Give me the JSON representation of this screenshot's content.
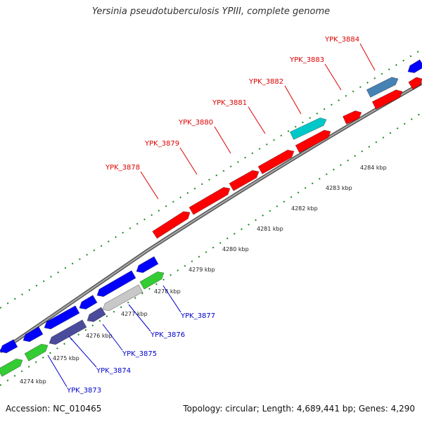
{
  "title": "Yersinia pseudotuberculosis YPIII, complete genome",
  "footer": {
    "accession": "Accession: NC_010465",
    "summary": "Topology: circular; Length: 4,689,441 bp; Genes: 4,290"
  },
  "colors": {
    "reverse_strand_gene": "#ff0000",
    "reverse_highlight": "#1e90ff",
    "reverse_teal": "#00c8c8",
    "forward_strand_gene": "#0000ff",
    "forward_dark": "#4b4b9c",
    "forward_green": "#33cc33",
    "forward_gray": "#c8c8c8",
    "backbone": "#888888",
    "kbp_ticks": "#1a8a1a",
    "reverse_label": "#dd0000",
    "forward_label": "#0000cc"
  },
  "kbp_ticks": [
    {
      "label": "4274 kbp"
    },
    {
      "label": "4275 kbp"
    },
    {
      "label": "4276 kbp"
    },
    {
      "label": "4277 kbp"
    },
    {
      "label": "4278 kbp"
    },
    {
      "label": "4279 kbp"
    },
    {
      "label": "4280 kbp"
    },
    {
      "label": "4281 kbp"
    },
    {
      "label": "4282 kbp"
    },
    {
      "label": "4283 kbp"
    },
    {
      "label": "4284 kbp"
    }
  ],
  "reverse_genes": [
    {
      "label": "YPK_3878"
    },
    {
      "label": "YPK_3879"
    },
    {
      "label": "YPK_3880"
    },
    {
      "label": "YPK_3881"
    },
    {
      "label": "YPK_3882"
    },
    {
      "label": "YPK_3883"
    },
    {
      "label": "YPK_3884"
    }
  ],
  "forward_genes": [
    {
      "label": "YPK_3873"
    },
    {
      "label": "YPK_3874"
    },
    {
      "label": "YPK_3875"
    },
    {
      "label": "YPK_3876"
    },
    {
      "label": "YPK_3877"
    }
  ]
}
